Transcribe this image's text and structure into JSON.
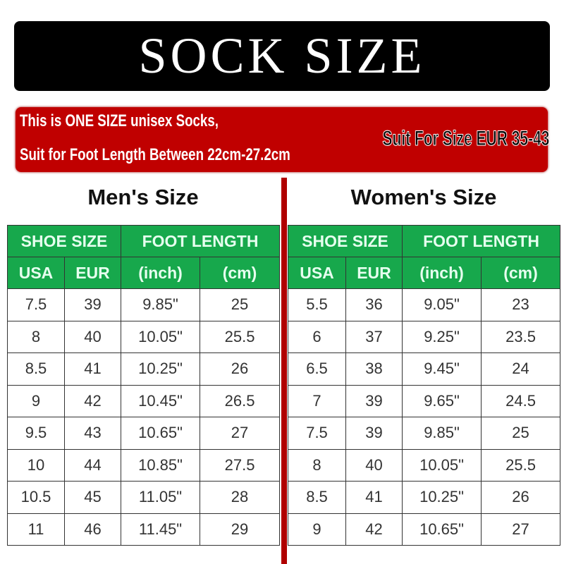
{
  "banner": {
    "title": "SOCK SIZE"
  },
  "notice": {
    "line1": "This is ONE SIZE unisex Socks,",
    "line2": "Suit for Foot Length Between 22cm-27.2cm",
    "badge": "Suit For Size EUR 35-43"
  },
  "colors": {
    "header_green": "#17a84c",
    "notice_red": "#c00000",
    "banner_black": "#000000"
  },
  "men": {
    "title": "Men's Size",
    "group_headers": [
      "SHOE SIZE",
      "FOOT LENGTH"
    ],
    "columns": [
      "USA",
      "EUR",
      "(inch)",
      "(cm)"
    ],
    "rows": [
      [
        "7.5",
        "39",
        "9.85\"",
        "25"
      ],
      [
        "8",
        "40",
        "10.05\"",
        "25.5"
      ],
      [
        "8.5",
        "41",
        "10.25\"",
        "26"
      ],
      [
        "9",
        "42",
        "10.45\"",
        "26.5"
      ],
      [
        "9.5",
        "43",
        "10.65\"",
        "27"
      ],
      [
        "10",
        "44",
        "10.85\"",
        "27.5"
      ],
      [
        "10.5",
        "45",
        "11.05\"",
        "28"
      ],
      [
        "11",
        "46",
        "11.45\"",
        "29"
      ]
    ]
  },
  "women": {
    "title": "Women's Size",
    "group_headers": [
      "SHOE SIZE",
      "FOOT LENGTH"
    ],
    "columns": [
      "USA",
      "EUR",
      "(inch)",
      "(cm)"
    ],
    "rows": [
      [
        "5.5",
        "36",
        "9.05\"",
        "23"
      ],
      [
        "6",
        "37",
        "9.25\"",
        "23.5"
      ],
      [
        "6.5",
        "38",
        "9.45\"",
        "24"
      ],
      [
        "7",
        "39",
        "9.65\"",
        "24.5"
      ],
      [
        "7.5",
        "39",
        "9.85\"",
        "25"
      ],
      [
        "8",
        "40",
        "10.05\"",
        "25.5"
      ],
      [
        "8.5",
        "41",
        "10.25\"",
        "26"
      ],
      [
        "9",
        "42",
        "10.65\"",
        "27"
      ]
    ]
  }
}
